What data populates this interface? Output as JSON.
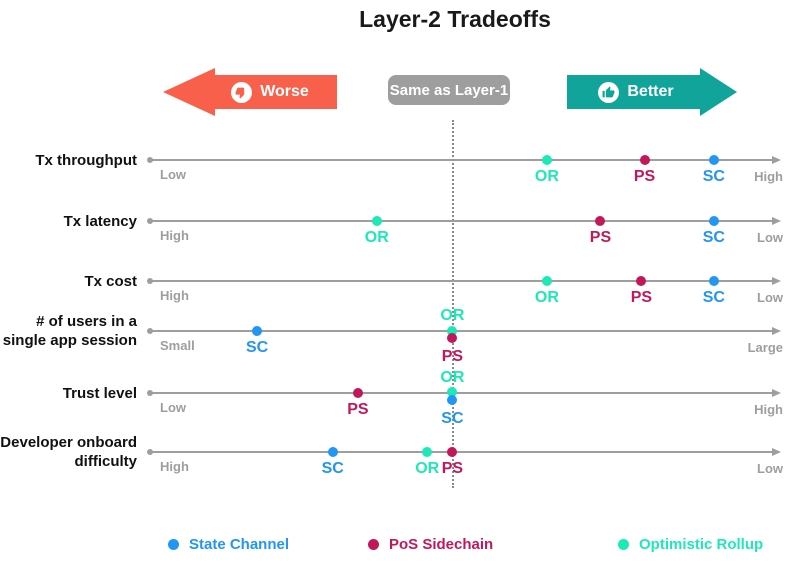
{
  "title": "Layer-2 Tradeoffs",
  "header": {
    "worse": {
      "label": "Worse",
      "color": "#F8604B",
      "icon": "thumbs-down-icon"
    },
    "same": {
      "label": "Same as Layer-1",
      "color": "#9E9E9E"
    },
    "better": {
      "label": "Better",
      "color": "#10A49A",
      "icon": "thumbs-up-icon"
    }
  },
  "legend": [
    {
      "id": "SC",
      "label": "State Channel",
      "color": "#2196F3"
    },
    {
      "id": "PS",
      "label": "PoS Sidechain",
      "color": "#C2185B"
    },
    {
      "id": "OR",
      "label": "Optimistic Rollup",
      "color": "#1DE9B6"
    }
  ],
  "chart_data": {
    "type": "scatter",
    "title": "Layer-2 Tradeoffs",
    "scale_note": "pos is percent along each axis: 0 = far left (worse), 100 = far right (better), 48 = dotted 'Same as Layer-1' baseline",
    "baseline_pos": 48,
    "direction_labels": {
      "left": "Worse",
      "center": "Same as Layer-1",
      "right": "Better"
    },
    "series": [
      "SC",
      "PS",
      "OR"
    ],
    "rows": [
      {
        "label": "Tx throughput",
        "label_lines": [
          "Tx throughput"
        ],
        "left": "Low",
        "right": "High",
        "points": [
          {
            "series": "OR",
            "pos": 63
          },
          {
            "series": "PS",
            "pos": 78.5
          },
          {
            "series": "SC",
            "pos": 89.5
          }
        ]
      },
      {
        "label": "Tx latency",
        "label_lines": [
          "Tx latency"
        ],
        "left": "High",
        "right": "Low",
        "points": [
          {
            "series": "OR",
            "pos": 36
          },
          {
            "series": "PS",
            "pos": 71.5
          },
          {
            "series": "SC",
            "pos": 89.5
          }
        ]
      },
      {
        "label": "Tx cost",
        "label_lines": [
          "Tx cost"
        ],
        "left": "High",
        "right": "Low",
        "points": [
          {
            "series": "OR",
            "pos": 63
          },
          {
            "series": "PS",
            "pos": 78
          },
          {
            "series": "SC",
            "pos": 89.5
          }
        ]
      },
      {
        "label": "# of users in a single app session",
        "label_lines": [
          "# of users in a",
          "single app session"
        ],
        "left": "Small",
        "right": "Large",
        "points": [
          {
            "series": "SC",
            "pos": 17
          },
          {
            "series": "OR",
            "pos": 48,
            "label_side": "above"
          },
          {
            "series": "PS",
            "pos": 48,
            "dot_dy": 7
          }
        ]
      },
      {
        "label": "Trust level",
        "label_lines": [
          "Trust level"
        ],
        "left": "Low",
        "right": "High",
        "points": [
          {
            "series": "PS",
            "pos": 33
          },
          {
            "series": "OR",
            "pos": 48,
            "label_side": "above",
            "dot_dy": -1
          },
          {
            "series": "SC",
            "pos": 48,
            "dot_dy": 7
          }
        ]
      },
      {
        "label": "Developer onboard difficulty",
        "label_lines": [
          "Developer onboard",
          "difficulty"
        ],
        "left": "High",
        "right": "Low",
        "points": [
          {
            "series": "SC",
            "pos": 29
          },
          {
            "series": "OR",
            "pos": 44
          },
          {
            "series": "PS",
            "pos": 48
          }
        ]
      }
    ]
  }
}
